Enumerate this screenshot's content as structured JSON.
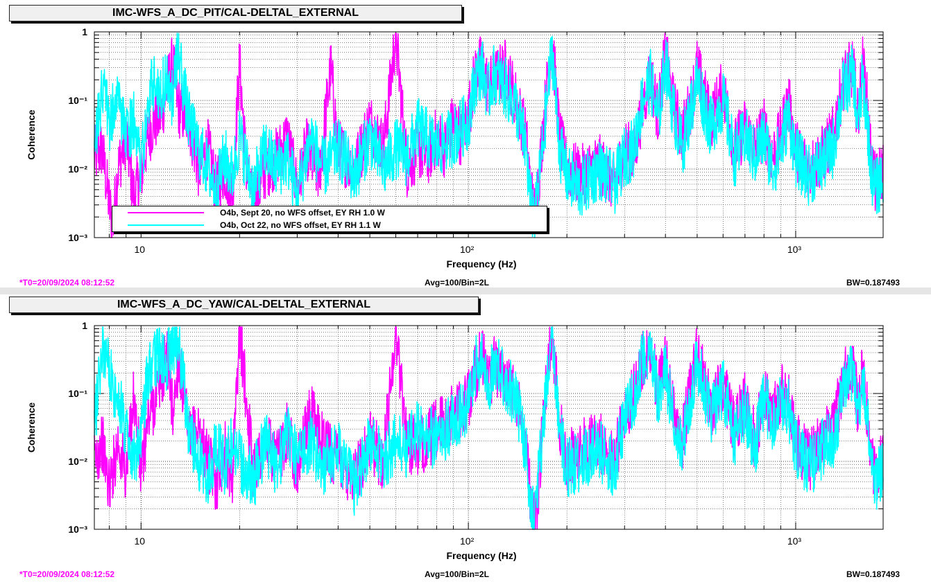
{
  "colors": {
    "series1": "#ff00ff",
    "series2": "#00ffff",
    "grid": "#000000",
    "t0": "#ff00ff"
  },
  "panels": [
    {
      "title": "IMC-WFS_A_DC_PIT/CAL-DELTAL_EXTERNAL",
      "footer": {
        "t0": "*T0=20/09/2024 08:12:52",
        "avg": "Avg=100/Bin=2L",
        "bw": "BW=0.187493"
      },
      "legend": [
        {
          "label": "O4b, Sept 20, no WFS offset, EY RH 1.0 W",
          "color": "#ff00ff"
        },
        {
          "label": "O4b, Oct 22, no WFS offset, EY RH 1.1 W",
          "color": "#00ffff"
        }
      ]
    },
    {
      "title": "IMC-WFS_A_DC_YAW/CAL-DELTAL_EXTERNAL",
      "footer": {
        "t0": "*T0=20/09/2024 08:12:52",
        "avg": "Avg=100/Bin=2L",
        "bw": "BW=0.187493"
      }
    }
  ],
  "chart_data": [
    {
      "type": "line",
      "xlabel": "Frequency (Hz)",
      "ylabel": "Coherence",
      "xscale": "log",
      "yscale": "log",
      "xlim": [
        7.2,
        1850
      ],
      "ylim": [
        0.001,
        1
      ],
      "grid": true,
      "legend_position": "bottom-left",
      "x_ticks": [
        10,
        100,
        1000
      ],
      "x_tick_labels": [
        "10",
        "10²",
        "10³"
      ],
      "y_ticks": [
        0.001,
        0.01,
        0.1,
        1
      ],
      "y_tick_labels": [
        "10⁻³",
        "10⁻²",
        "10⁻¹",
        "1"
      ],
      "series": [
        {
          "name": "O4b, Sept 20, no WFS offset, EY RH 1.0 W",
          "color": "#ff00ff",
          "x": [
            7.2,
            7.6,
            8.0,
            8.2,
            8.5,
            9.0,
            9.5,
            10.0,
            10.5,
            11.0,
            11.5,
            12.0,
            12.5,
            13.0,
            14.0,
            15.0,
            16.0,
            17.0,
            18.0,
            19.0,
            20.0,
            21.0,
            22.0,
            24.0,
            26.0,
            28.0,
            30.0,
            32.0,
            35.0,
            38.0,
            40.0,
            45.0,
            50.0,
            55.0,
            60.0,
            65.0,
            70.0,
            75.0,
            80.0,
            85.0,
            90.0,
            95.0,
            100.0,
            105.0,
            110.0,
            115.0,
            120.0,
            130.0,
            140.0,
            150.0,
            155.0,
            160.0,
            170.0,
            180.0,
            190.0,
            200.0,
            220.0,
            250.0,
            280.0,
            300.0,
            320.0,
            340.0,
            360.0,
            380.0,
            400.0,
            420.0,
            450.0,
            480.0,
            500.0,
            550.0,
            600.0,
            650.0,
            700.0,
            750.0,
            800.0,
            850.0,
            900.0,
            950.0,
            1000.0,
            1100.0,
            1200.0,
            1300.0,
            1400.0,
            1500.0,
            1550.0,
            1600.0,
            1650.0,
            1700.0,
            1750.0,
            1850.0
          ],
          "y": [
            0.015,
            0.02,
            0.003,
            0.0015,
            0.01,
            0.03,
            0.004,
            0.008,
            0.03,
            0.05,
            0.06,
            0.15,
            0.35,
            0.08,
            0.05,
            0.01,
            0.02,
            0.005,
            0.01,
            0.004,
            0.35,
            0.01,
            0.003,
            0.01,
            0.015,
            0.03,
            0.005,
            0.02,
            0.008,
            0.3,
            0.02,
            0.01,
            0.05,
            0.02,
            0.9,
            0.01,
            0.02,
            0.015,
            0.03,
            0.02,
            0.05,
            0.03,
            0.06,
            0.25,
            0.35,
            0.15,
            0.2,
            0.3,
            0.1,
            0.03,
            0.005,
            0.002,
            0.05,
            0.9,
            0.03,
            0.01,
            0.008,
            0.012,
            0.006,
            0.02,
            0.015,
            0.08,
            0.25,
            0.06,
            0.5,
            0.1,
            0.03,
            0.1,
            0.3,
            0.05,
            0.15,
            0.02,
            0.04,
            0.02,
            0.04,
            0.015,
            0.03,
            0.1,
            0.02,
            0.01,
            0.015,
            0.03,
            0.2,
            0.3,
            0.05,
            0.35,
            0.1,
            0.015,
            0.006,
            0.01
          ]
        },
        {
          "name": "O4b, Oct 22, no WFS offset, EY RH 1.1 W",
          "color": "#00ffff",
          "x": [
            7.2,
            7.6,
            8.0,
            8.5,
            9.0,
            9.5,
            10.0,
            10.5,
            11.0,
            11.5,
            12.0,
            12.5,
            13.0,
            13.5,
            14.0,
            15.0,
            16.0,
            17.0,
            18.0,
            19.0,
            20.0,
            22.0,
            24.0,
            26.0,
            28.0,
            30.0,
            33.0,
            36.0,
            40.0,
            45.0,
            50.0,
            55.0,
            60.0,
            65.0,
            70.0,
            80.0,
            90.0,
            100.0,
            105.0,
            110.0,
            115.0,
            120.0,
            130.0,
            140.0,
            150.0,
            155.0,
            160.0,
            170.0,
            180.0,
            190.0,
            200.0,
            220.0,
            250.0,
            280.0,
            300.0,
            320.0,
            340.0,
            360.0,
            380.0,
            400.0,
            420.0,
            450.0,
            480.0,
            500.0,
            550.0,
            600.0,
            650.0,
            700.0,
            750.0,
            800.0,
            850.0,
            900.0,
            950.0,
            1000.0,
            1100.0,
            1200.0,
            1300.0,
            1400.0,
            1500.0,
            1550.0,
            1600.0,
            1650.0,
            1700.0,
            1750.0,
            1850.0
          ],
          "y": [
            0.02,
            0.15,
            0.05,
            0.1,
            0.03,
            0.05,
            0.01,
            0.1,
            0.2,
            0.12,
            0.25,
            0.1,
            0.6,
            0.15,
            0.05,
            0.02,
            0.01,
            0.005,
            0.015,
            0.008,
            0.03,
            0.005,
            0.02,
            0.01,
            0.015,
            0.004,
            0.03,
            0.01,
            0.02,
            0.008,
            0.03,
            0.01,
            0.02,
            0.015,
            0.04,
            0.02,
            0.03,
            0.05,
            0.2,
            0.3,
            0.12,
            0.25,
            0.15,
            0.08,
            0.02,
            0.003,
            0.002,
            0.03,
            0.6,
            0.02,
            0.008,
            0.005,
            0.01,
            0.006,
            0.015,
            0.02,
            0.1,
            0.2,
            0.05,
            0.4,
            0.08,
            0.02,
            0.08,
            0.2,
            0.04,
            0.1,
            0.015,
            0.03,
            0.015,
            0.03,
            0.01,
            0.02,
            0.06,
            0.015,
            0.008,
            0.012,
            0.02,
            0.15,
            0.25,
            0.04,
            0.2,
            0.06,
            0.01,
            0.005,
            0.008
          ]
        }
      ]
    },
    {
      "type": "line",
      "xlabel": "Frequency (Hz)",
      "ylabel": "Coherence",
      "xscale": "log",
      "yscale": "log",
      "xlim": [
        7.2,
        1850
      ],
      "ylim": [
        0.001,
        1
      ],
      "grid": true,
      "x_ticks": [
        10,
        100,
        1000
      ],
      "x_tick_labels": [
        "10",
        "10²",
        "10³"
      ],
      "y_ticks": [
        0.001,
        0.01,
        0.1,
        1
      ],
      "y_tick_labels": [
        "10⁻³",
        "10⁻²",
        "10⁻¹",
        "1"
      ],
      "series": [
        {
          "name": "O4b, Sept 20, no WFS offset, EY RH 1.0 W",
          "color": "#ff00ff",
          "x": [
            7.2,
            7.6,
            8.0,
            8.5,
            9.0,
            9.5,
            10.0,
            10.5,
            11.0,
            11.5,
            12.0,
            12.5,
            13.0,
            13.5,
            14.0,
            15.0,
            16.0,
            17.0,
            18.0,
            19.0,
            20.0,
            22.0,
            24.0,
            26.0,
            28.0,
            30.0,
            33.0,
            36.0,
            40.0,
            45.0,
            50.0,
            55.0,
            60.0,
            65.0,
            70.0,
            80.0,
            90.0,
            100.0,
            105.0,
            110.0,
            115.0,
            120.0,
            130.0,
            140.0,
            150.0,
            155.0,
            160.0,
            170.0,
            180.0,
            190.0,
            200.0,
            220.0,
            250.0,
            280.0,
            300.0,
            320.0,
            340.0,
            360.0,
            380.0,
            400.0,
            420.0,
            450.0,
            480.0,
            500.0,
            550.0,
            600.0,
            650.0,
            700.0,
            750.0,
            800.0,
            850.0,
            900.0,
            950.0,
            1000.0,
            1100.0,
            1200.0,
            1300.0,
            1400.0,
            1500.0,
            1550.0,
            1600.0,
            1650.0,
            1700.0,
            1750.0,
            1850.0
          ],
          "y": [
            0.01,
            0.02,
            0.004,
            0.02,
            0.006,
            0.1,
            0.006,
            0.04,
            0.08,
            0.15,
            0.4,
            0.05,
            0.3,
            0.1,
            0.02,
            0.03,
            0.01,
            0.005,
            0.015,
            0.006,
            0.9,
            0.008,
            0.02,
            0.01,
            0.03,
            0.008,
            0.05,
            0.02,
            0.01,
            0.006,
            0.02,
            0.01,
            0.9,
            0.02,
            0.015,
            0.03,
            0.05,
            0.08,
            0.2,
            0.4,
            0.15,
            0.25,
            0.2,
            0.1,
            0.02,
            0.003,
            0.001,
            0.05,
            0.9,
            0.04,
            0.01,
            0.015,
            0.02,
            0.01,
            0.05,
            0.1,
            0.3,
            0.5,
            0.1,
            0.3,
            0.08,
            0.02,
            0.15,
            0.4,
            0.06,
            0.15,
            0.03,
            0.08,
            0.02,
            0.1,
            0.05,
            0.1,
            0.08,
            0.02,
            0.01,
            0.02,
            0.03,
            0.15,
            0.3,
            0.06,
            0.2,
            0.06,
            0.015,
            0.006,
            0.01
          ]
        },
        {
          "name": "O4b, Oct 22, no WFS offset, EY RH 1.1 W",
          "color": "#00ffff",
          "x": [
            7.2,
            7.6,
            8.0,
            8.5,
            9.0,
            9.5,
            10.0,
            10.5,
            11.0,
            11.5,
            12.0,
            12.5,
            13.0,
            13.5,
            14.0,
            15.0,
            16.0,
            17.0,
            18.0,
            19.0,
            20.0,
            22.0,
            24.0,
            26.0,
            28.0,
            30.0,
            33.0,
            36.0,
            40.0,
            45.0,
            50.0,
            55.0,
            60.0,
            65.0,
            70.0,
            80.0,
            90.0,
            100.0,
            105.0,
            110.0,
            115.0,
            120.0,
            130.0,
            140.0,
            150.0,
            155.0,
            160.0,
            170.0,
            180.0,
            190.0,
            200.0,
            220.0,
            250.0,
            280.0,
            300.0,
            320.0,
            340.0,
            360.0,
            380.0,
            400.0,
            420.0,
            450.0,
            480.0,
            500.0,
            550.0,
            600.0,
            650.0,
            700.0,
            750.0,
            800.0,
            850.0,
            900.0,
            950.0,
            1000.0,
            1100.0,
            1200.0,
            1300.0,
            1400.0,
            1500.0,
            1550.0,
            1600.0,
            1650.0,
            1700.0,
            1750.0,
            1850.0
          ],
          "y": [
            0.03,
            0.5,
            0.2,
            0.08,
            0.03,
            0.01,
            0.03,
            0.2,
            0.3,
            0.4,
            0.3,
            0.5,
            0.6,
            0.15,
            0.03,
            0.01,
            0.005,
            0.02,
            0.008,
            0.02,
            0.01,
            0.005,
            0.02,
            0.008,
            0.03,
            0.01,
            0.02,
            0.008,
            0.015,
            0.004,
            0.02,
            0.01,
            0.02,
            0.015,
            0.03,
            0.02,
            0.04,
            0.06,
            0.25,
            0.3,
            0.12,
            0.3,
            0.15,
            0.08,
            0.015,
            0.002,
            0.002,
            0.04,
            0.6,
            0.03,
            0.008,
            0.01,
            0.015,
            0.008,
            0.04,
            0.08,
            0.35,
            0.4,
            0.08,
            0.2,
            0.06,
            0.015,
            0.1,
            0.3,
            0.05,
            0.12,
            0.02,
            0.06,
            0.015,
            0.08,
            0.04,
            0.08,
            0.06,
            0.015,
            0.008,
            0.015,
            0.02,
            0.1,
            0.25,
            0.05,
            0.15,
            0.05,
            0.012,
            0.005,
            0.008
          ]
        }
      ]
    }
  ]
}
